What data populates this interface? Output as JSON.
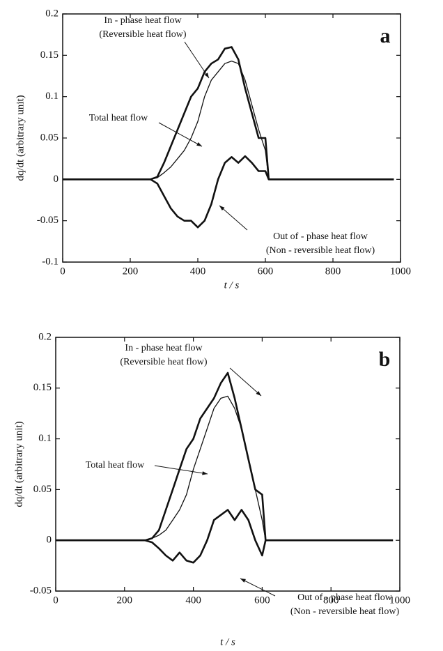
{
  "chart_data": [
    {
      "type": "line",
      "panel": "a",
      "x_label": "t / s",
      "y_label": "dq/dt  (arbitrary unit)",
      "xlim": [
        0,
        1000
      ],
      "xticks": [
        0,
        200,
        400,
        600,
        800,
        1000
      ],
      "ylim": [
        -0.1,
        0.2
      ],
      "yticks": [
        -0.1,
        -0.05,
        0,
        0.05,
        0.1,
        0.15,
        0.2
      ],
      "x": [
        0,
        260,
        280,
        300,
        320,
        340,
        360,
        380,
        400,
        420,
        440,
        460,
        480,
        500,
        520,
        540,
        560,
        580,
        600,
        610,
        620,
        980
      ],
      "series": [
        {
          "name": "In - phase heat flow",
          "note": "(Reversible heat flow)",
          "color": "#111111",
          "values": [
            0,
            0,
            0.003,
            0.02,
            0.04,
            0.06,
            0.08,
            0.1,
            0.11,
            0.13,
            0.14,
            0.145,
            0.158,
            0.16,
            0.145,
            0.11,
            0.08,
            0.05,
            0.05,
            0,
            0,
            0
          ]
        },
        {
          "name": "Total heat flow",
          "color": "#111111",
          "values": [
            0,
            0,
            0.002,
            0.008,
            0.015,
            0.025,
            0.035,
            0.05,
            0.07,
            0.1,
            0.12,
            0.13,
            0.14,
            0.143,
            0.14,
            0.12,
            0.09,
            0.06,
            0.035,
            0,
            0,
            0
          ]
        },
        {
          "name": "Out of - phase heat flow",
          "note": "(Non - reversible heat flow)",
          "color": "#111111",
          "values": [
            0,
            0,
            -0.005,
            -0.02,
            -0.035,
            -0.045,
            -0.05,
            -0.05,
            -0.058,
            -0.05,
            -0.03,
            0,
            0.02,
            0.027,
            0.02,
            0.028,
            0.02,
            0.01,
            0.01,
            0,
            0,
            0
          ]
        }
      ]
    },
    {
      "type": "line",
      "panel": "b",
      "x_label": "t / s",
      "y_label": "dq/dt  (arbitrary unit)",
      "xlim": [
        0,
        1000
      ],
      "xticks": [
        0,
        200,
        400,
        600,
        800,
        1000
      ],
      "ylim": [
        -0.05,
        0.2
      ],
      "yticks": [
        -0.05,
        0,
        0.05,
        0.1,
        0.15,
        0.2
      ],
      "x": [
        0,
        260,
        280,
        300,
        320,
        340,
        360,
        380,
        400,
        420,
        440,
        460,
        480,
        500,
        520,
        540,
        560,
        580,
        600,
        610,
        620,
        980
      ],
      "series": [
        {
          "name": "In - phase heat flow",
          "note": "(Reversible heat flow)",
          "color": "#111111",
          "values": [
            0,
            0,
            0.002,
            0.01,
            0.03,
            0.05,
            0.07,
            0.09,
            0.1,
            0.12,
            0.13,
            0.14,
            0.155,
            0.165,
            0.14,
            0.11,
            0.08,
            0.05,
            0.045,
            0,
            0,
            0
          ]
        },
        {
          "name": "Total heat flow",
          "color": "#111111",
          "values": [
            0,
            0,
            0.002,
            0.005,
            0.01,
            0.02,
            0.03,
            0.045,
            0.07,
            0.09,
            0.11,
            0.13,
            0.14,
            0.142,
            0.13,
            0.11,
            0.08,
            0.05,
            0.02,
            0,
            0,
            0
          ]
        },
        {
          "name": "Out of - phase heat flow",
          "note": "(Non - reversible heat flow)",
          "color": "#111111",
          "values": [
            0,
            0,
            -0.002,
            -0.008,
            -0.015,
            -0.02,
            -0.012,
            -0.02,
            -0.022,
            -0.015,
            0,
            0.02,
            0.025,
            0.03,
            0.02,
            0.03,
            0.02,
            0,
            -0.015,
            0,
            0,
            0
          ]
        }
      ]
    }
  ]
}
